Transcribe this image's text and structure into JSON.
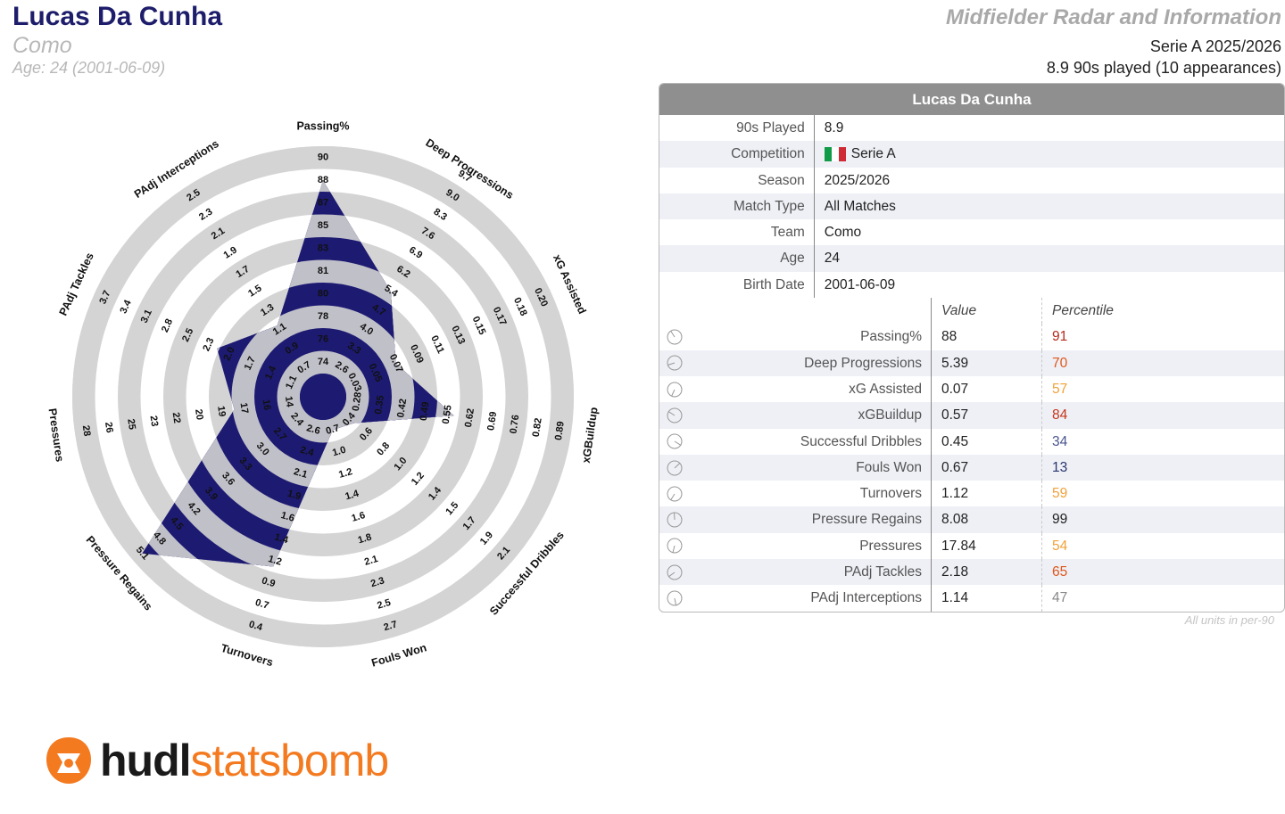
{
  "header": {
    "player_name": "Lucas Da Cunha",
    "team": "Como",
    "age_line": "Age: 24 (2001-06-09)",
    "report_title": "Midfielder Radar and Information",
    "competition_line": "Serie A 2025/2026",
    "played_line": "8.9 90s played (10 appearances)"
  },
  "colors": {
    "radar_fill": "#1d1a72",
    "ring_band": "#d4d4d4",
    "shaded_area": "#c0c0c8",
    "pct_high": "#b52a1c",
    "pct_mid_high": "#e36b1e",
    "pct_mid": "#f0a030",
    "pct_low": "#2f3d7a"
  },
  "chart_data": {
    "type": "radar",
    "metrics": [
      {
        "name": "Passing%",
        "value": 88,
        "ticks": [
          "74",
          "76",
          "78",
          "80",
          "81",
          "83",
          "85",
          "87",
          "88",
          "90"
        ],
        "side": "left"
      },
      {
        "name": "Deep Progressions",
        "value": 5.39,
        "ticks": [
          "2.6",
          "3.3",
          "4.0",
          "4.7",
          "5.4",
          "6.2",
          "6.9",
          "7.6",
          "8.3",
          "9.0",
          "9.7"
        ],
        "side": "right"
      },
      {
        "name": "xG Assisted",
        "value": 0.07,
        "ticks": [
          "0.03",
          "0.05",
          "0.07",
          "0.09",
          "0.11",
          "0.13",
          "0.15",
          "0.17",
          "0.18",
          "0.20"
        ],
        "side": "right"
      },
      {
        "name": "xGBuildup",
        "value": 0.57,
        "ticks": [
          "0.28",
          "0.35",
          "0.42",
          "0.49",
          "0.55",
          "0.62",
          "0.69",
          "0.76",
          "0.82",
          "0.89"
        ],
        "side": "right"
      },
      {
        "name": "Successful Dribbles",
        "value": 0.45,
        "ticks": [
          "0.4",
          "0.6",
          "0.8",
          "1.0",
          "1.2",
          "1.4",
          "1.5",
          "1.7",
          "1.9",
          "2.1"
        ],
        "side": "right"
      },
      {
        "name": "Fouls Won",
        "value": 0.67,
        "ticks": [
          "0.7",
          "1.0",
          "1.2",
          "1.4",
          "1.6",
          "1.8",
          "2.1",
          "2.3",
          "2.5",
          "2.7"
        ],
        "side": "right"
      },
      {
        "name": "Turnovers",
        "value": 1.12,
        "ticks": [
          "2.6",
          "2.4",
          "2.1",
          "1.9",
          "1.6",
          "1.4",
          "1.2",
          "0.9",
          "0.7",
          "0.4"
        ],
        "side": "right"
      },
      {
        "name": "Pressure Regains",
        "value": 8.08,
        "ticks": [
          "2.4",
          "2.7",
          "3.0",
          "3.3",
          "3.6",
          "3.9",
          "4.2",
          "4.5",
          "4.8",
          "5.1"
        ],
        "side": "left"
      },
      {
        "name": "Pressures",
        "value": 17.84,
        "ticks": [
          "14",
          "16",
          "17",
          "19",
          "20",
          "22",
          "23",
          "25",
          "26",
          "28"
        ],
        "side": "left"
      },
      {
        "name": "PAdj Tackles",
        "value": 2.18,
        "ticks": [
          "1.1",
          "1.4",
          "1.7",
          "2.0",
          "2.3",
          "2.5",
          "2.8",
          "3.1",
          "3.4",
          "3.7"
        ],
        "side": "left"
      },
      {
        "name": "PAdj Interceptions",
        "value": 1.14,
        "ticks": [
          "0.7",
          "0.9",
          "1.1",
          "1.3",
          "1.5",
          "1.7",
          "1.9",
          "2.1",
          "2.3",
          "2.5"
        ],
        "side": "left"
      }
    ],
    "grid": "concentric bands",
    "legend": "none"
  },
  "table": {
    "title": "Lucas Da Cunha",
    "info_rows": [
      {
        "label": "90s Played",
        "value": "8.9"
      },
      {
        "label": "Competition",
        "value": "Serie A",
        "flag": true
      },
      {
        "label": "Season",
        "value": "2025/2026"
      },
      {
        "label": "Match Type",
        "value": "All Matches"
      },
      {
        "label": "Team",
        "value": "Como"
      },
      {
        "label": "Age",
        "value": "24"
      },
      {
        "label": "Birth Date",
        "value": "2001-06-09"
      }
    ],
    "col_value": "Value",
    "col_percentile": "Percentile",
    "metric_rows": [
      {
        "label": "Passing%",
        "value": "88",
        "pct": "91",
        "pct_color": "#b52a1c",
        "gauge": 0.91
      },
      {
        "label": "Deep Progressions",
        "value": "5.39",
        "pct": "70",
        "pct_color": "#e0561c",
        "gauge": 0.7
      },
      {
        "label": "xG Assisted",
        "value": "0.07",
        "pct": "57",
        "pct_color": "#f2a13a",
        "gauge": 0.57
      },
      {
        "label": "xGBuildup",
        "value": "0.57",
        "pct": "84",
        "pct_color": "#c7361e",
        "gauge": 0.84
      },
      {
        "label": "Successful Dribbles",
        "value": "0.45",
        "pct": "34",
        "pct_color": "#4a5590",
        "gauge": 0.34
      },
      {
        "label": "Fouls Won",
        "value": "0.67",
        "pct": "13",
        "pct_color": "#2a3570",
        "gauge": 0.13
      },
      {
        "label": "Turnovers",
        "value": "1.12",
        "pct": "59",
        "pct_color": "#f2a13a",
        "gauge": 0.59
      },
      {
        "label": "Pressure Regains",
        "value": "8.08",
        "pct": "99",
        "pct_color": "#222222",
        "gauge": 0.99
      },
      {
        "label": "Pressures",
        "value": "17.84",
        "pct": "54",
        "pct_color": "#f2a13a",
        "gauge": 0.54
      },
      {
        "label": "PAdj Tackles",
        "value": "2.18",
        "pct": "65",
        "pct_color": "#e0561c",
        "gauge": 0.65
      },
      {
        "label": "PAdj Interceptions",
        "value": "1.14",
        "pct": "47",
        "pct_color": "#888888",
        "gauge": 0.47
      }
    ],
    "units_note": "All units in per-90"
  },
  "logo": {
    "brand_a": "hudl",
    "brand_b": "statsbomb",
    "icon": "hudl-logo-icon"
  }
}
